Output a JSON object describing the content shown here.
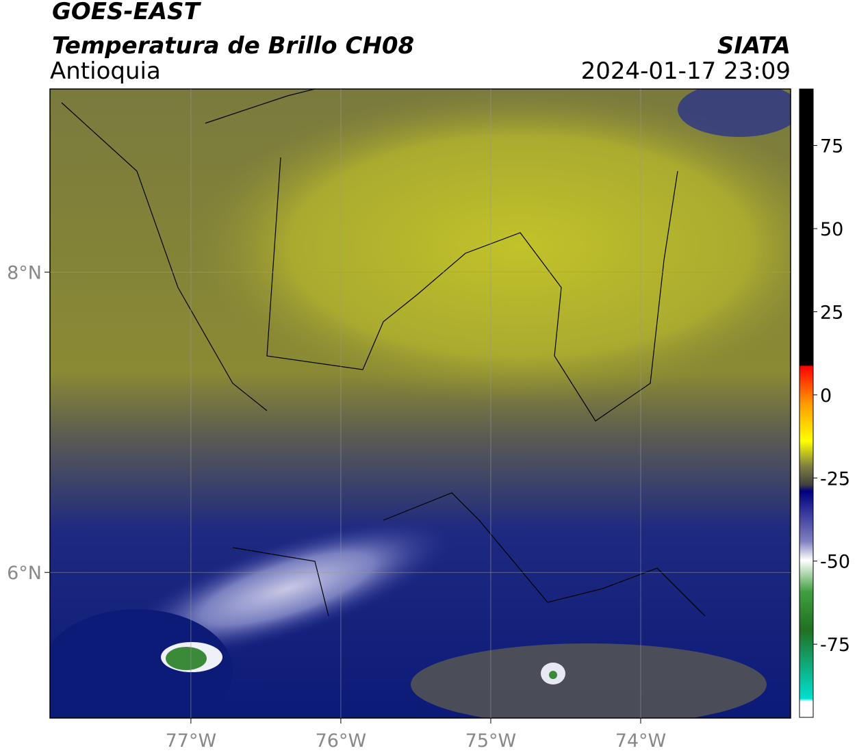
{
  "header": {
    "title": "GOES-EAST",
    "subtitle": "Temperatura de Brillo CH08",
    "region": "Antioquia",
    "source": "SIATA",
    "timestamp": "2024-01-17 23:09"
  },
  "map": {
    "xlim": [
      -77.94,
      -73.0
    ],
    "ylim": [
      5.03,
      9.22
    ],
    "xticks": [
      {
        "value": -77,
        "label": "77°W"
      },
      {
        "value": -76,
        "label": "76°W"
      },
      {
        "value": -75,
        "label": "75°W"
      },
      {
        "value": -74,
        "label": "74°W"
      }
    ],
    "yticks": [
      {
        "value": 6,
        "label": "6°N"
      },
      {
        "value": 8,
        "label": "8°N"
      }
    ]
  },
  "colorbar": {
    "lim": [
      -97,
      92
    ],
    "ticks": [
      75,
      50,
      25,
      0,
      -25,
      -50,
      -75
    ]
  }
}
